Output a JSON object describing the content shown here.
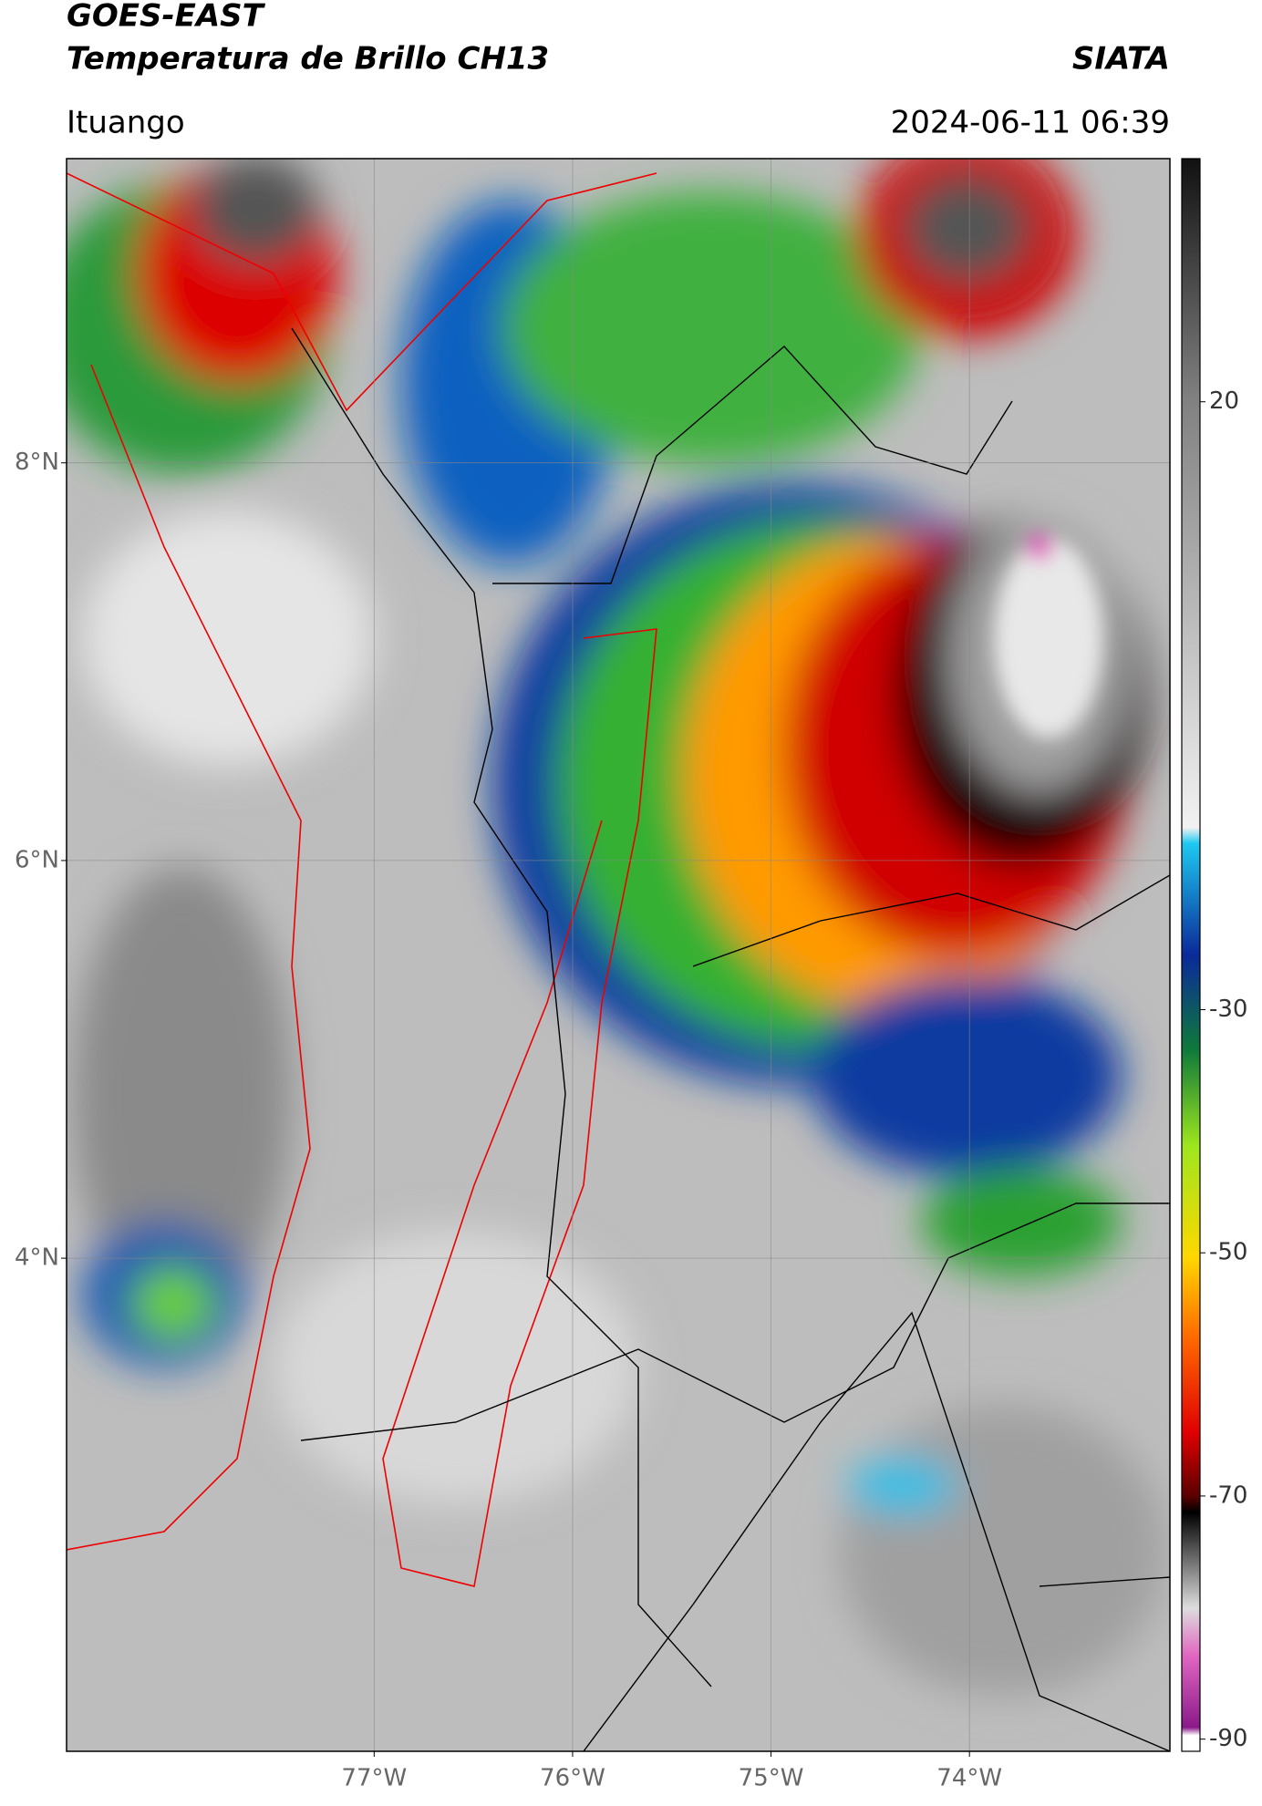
{
  "header": {
    "title": "GOES-EAST",
    "subtitle": "Temperatura de Brillo CH13",
    "org": "SIATA",
    "location": "Ituango",
    "datetime": "2024-06-11 06:39"
  },
  "map": {
    "latlim": [
      1.52,
      9.53
    ],
    "lonlim": [
      -78.55,
      -72.99
    ],
    "lat_ticks": [
      {
        "value": 8,
        "label": "8°N"
      },
      {
        "value": 6,
        "label": "6°N"
      },
      {
        "value": 4,
        "label": "4°N"
      }
    ],
    "lon_ticks": [
      {
        "value": -77,
        "label": "77°W"
      },
      {
        "value": -76,
        "label": "76°W"
      },
      {
        "value": -75,
        "label": "75°W"
      },
      {
        "value": -74,
        "label": "74°W"
      }
    ]
  },
  "colorbar": {
    "lim": [
      -91,
      40
    ],
    "ticks": [
      20,
      -30,
      -50,
      -70,
      -90
    ]
  }
}
